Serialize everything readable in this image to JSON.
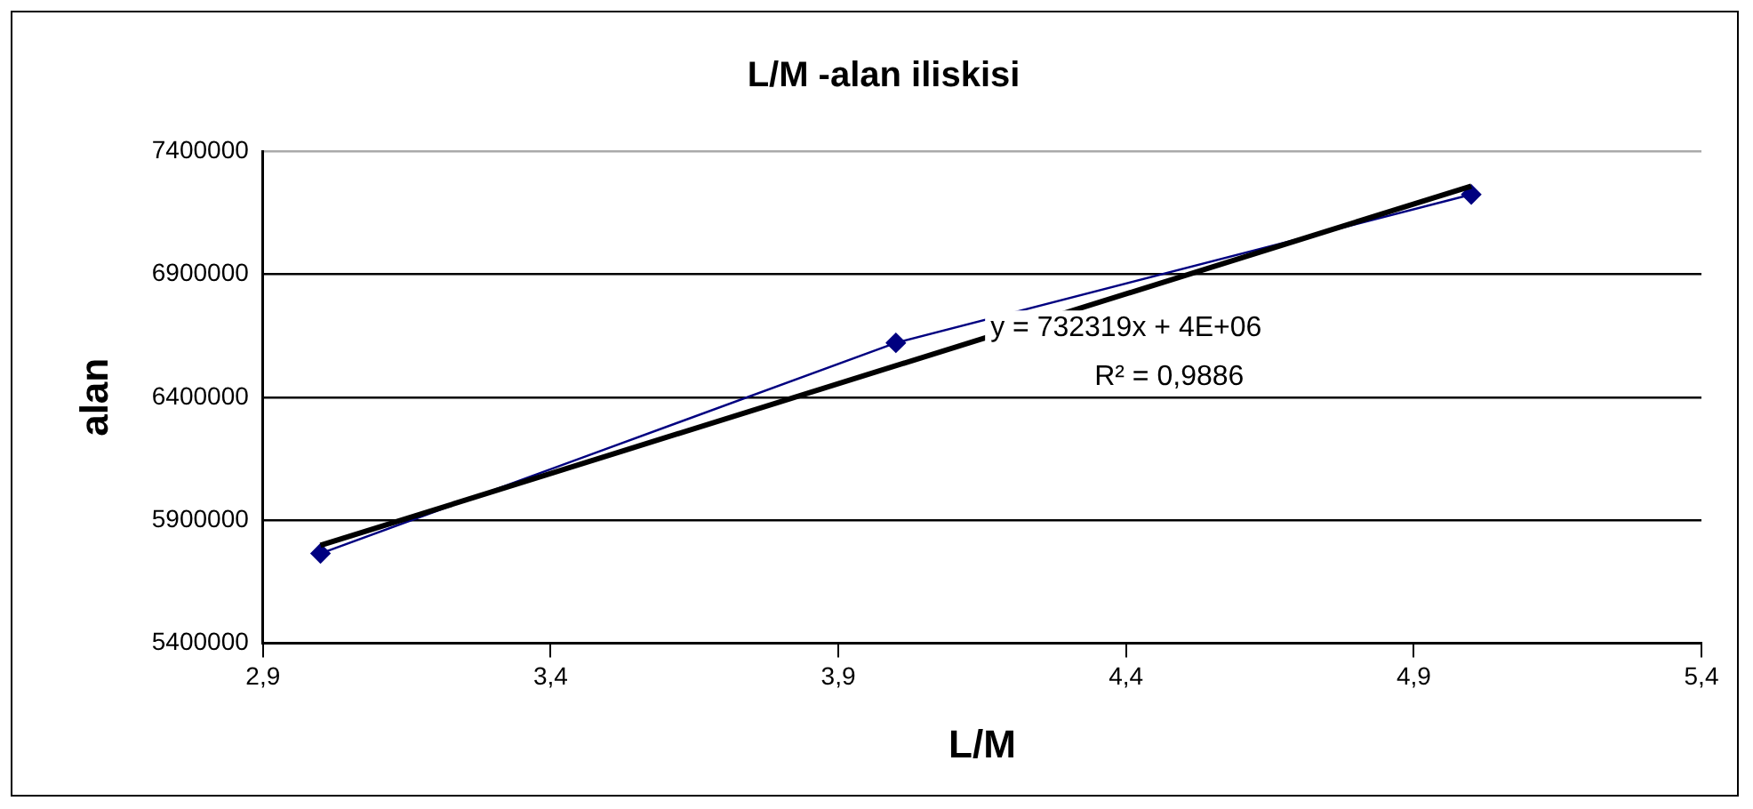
{
  "chart_data": {
    "type": "line",
    "title": "L/M -alan iliskisi",
    "xlabel": "L/M",
    "ylabel": "alan",
    "x": [
      3,
      4,
      5
    ],
    "series": [
      {
        "color": "#000080",
        "values": [
          5765000,
          6621000,
          7224000
        ],
        "marker": "diamond"
      },
      {
        "color": "#000000",
        "x": [
          3,
          5
        ],
        "values": [
          5798000,
          7258000
        ],
        "marker": "none"
      }
    ],
    "xlim": [
      2.9,
      5.4
    ],
    "xticks": [
      {
        "value": 2.9,
        "label": "2,9"
      },
      {
        "value": 3.4,
        "label": "3,4"
      },
      {
        "value": 3.9,
        "label": "3,9"
      },
      {
        "value": 4.4,
        "label": "4,4"
      },
      {
        "value": 4.9,
        "label": "4,9"
      },
      {
        "value": 5.4,
        "label": "5,4"
      }
    ],
    "ylim": [
      5400000,
      7400000
    ],
    "yticks": [
      5400000,
      5900000,
      6400000,
      6900000,
      7400000
    ],
    "grid": "y",
    "legend": false,
    "annotations": [
      "y = 732319x + 4E+06",
      "R² = 0,9886"
    ]
  }
}
